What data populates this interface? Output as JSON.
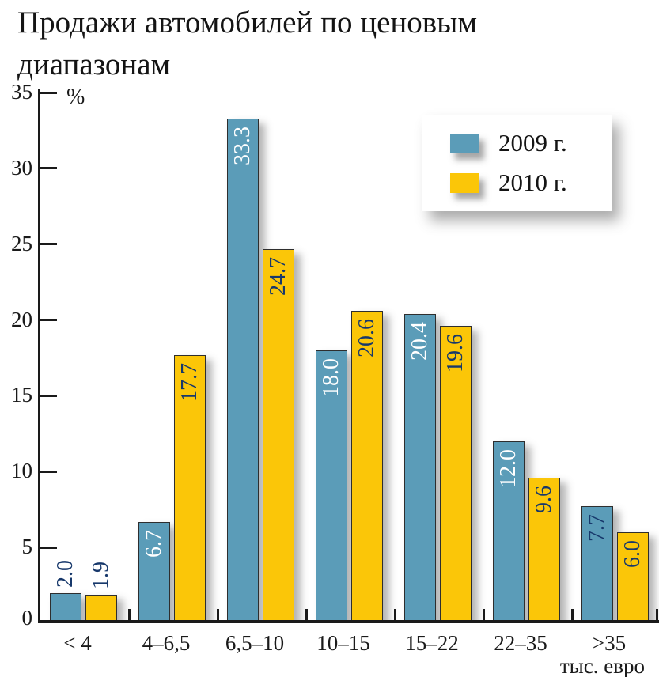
{
  "title": "Продажи автомобилей по ценовым диапазонам",
  "y_axis": {
    "unit_label": "%",
    "ticks": [
      "0",
      "5",
      "10",
      "15",
      "20",
      "25",
      "30",
      "35"
    ]
  },
  "x_axis": {
    "unit_label": "тыс. евро",
    "categories": [
      "< 4",
      "4–6,5",
      "6,5–10",
      "10–15",
      "15–22",
      "22–35",
      ">35"
    ]
  },
  "legend": {
    "items": [
      {
        "label": "2009 г.",
        "color": "#5b9cb8"
      },
      {
        "label": "2010 г.",
        "color": "#fbc608"
      }
    ]
  },
  "colors": {
    "series_2009": "#5b9cb8",
    "series_2010": "#fbc608",
    "value_label_dark": "#17386b",
    "value_label_light": "#ffffff",
    "axis": "#1a1a1a"
  },
  "chart_data": {
    "type": "bar",
    "title": "Продажи автомобилей по ценовым диапазонам",
    "categories": [
      "< 4",
      "4–6,5",
      "6,5–10",
      "10–15",
      "15–22",
      "22–35",
      ">35"
    ],
    "xlabel": "тыс. евро",
    "ylabel": "%",
    "ylim": [
      0,
      35
    ],
    "y_ticks": [
      0,
      5,
      10,
      15,
      20,
      25,
      30,
      35
    ],
    "grid": false,
    "legend_position": "top-right",
    "series": [
      {
        "name": "2009 г.",
        "color": "#5b9cb8",
        "values": [
          2.0,
          6.7,
          33.3,
          18.0,
          20.4,
          12.0,
          7.7
        ],
        "value_labels": [
          "2.0",
          "6.7",
          "33.3",
          "18.0",
          "20.4",
          "12.0",
          "7.7"
        ],
        "label_inside": [
          false,
          true,
          true,
          true,
          true,
          true,
          true
        ],
        "label_colors": [
          "#17386b",
          "#ffffff",
          "#ffffff",
          "#ffffff",
          "#ffffff",
          "#ffffff",
          "#17386b"
        ]
      },
      {
        "name": "2010 г.",
        "color": "#fbc608",
        "values": [
          1.9,
          17.7,
          24.7,
          20.6,
          19.6,
          9.6,
          6.0
        ],
        "value_labels": [
          "1.9",
          "17.7",
          "24.7",
          "20.6",
          "19.6",
          "9.6",
          "6.0"
        ],
        "label_inside": [
          false,
          true,
          true,
          true,
          true,
          true,
          true
        ],
        "label_colors": [
          "#17386b",
          "#17386b",
          "#17386b",
          "#17386b",
          "#17386b",
          "#17386b",
          "#17386b"
        ]
      }
    ]
  }
}
